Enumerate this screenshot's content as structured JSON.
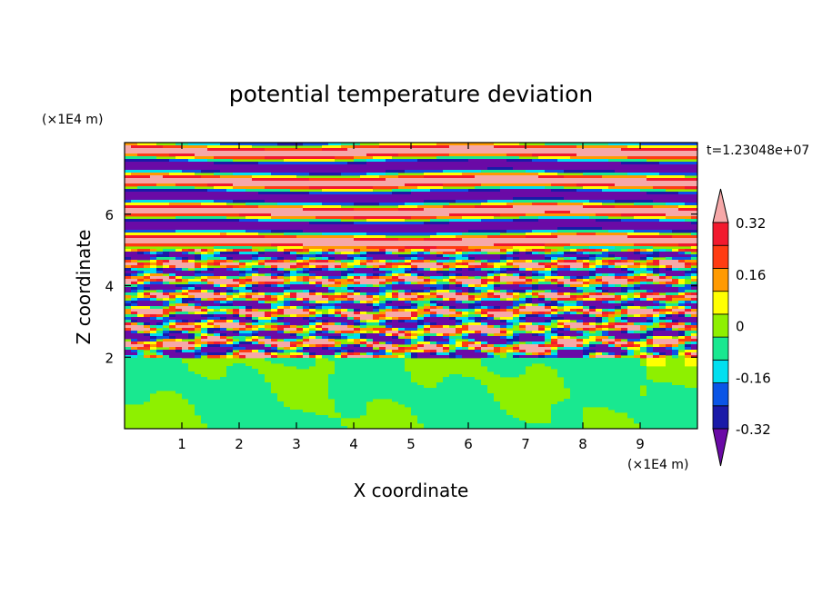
{
  "chart_data": {
    "type": "heatmap",
    "title": "potential temperature deviation",
    "xlabel": "X coordinate",
    "ylabel": "Z coordinate",
    "x_unit": "(×1E4 m)",
    "y_unit": "(×1E4 m)",
    "time_label": "t=1.23048e+07",
    "xlim": [
      0,
      10
    ],
    "ylim": [
      0,
      8
    ],
    "x_ticks": [
      1,
      2,
      3,
      4,
      5,
      6,
      7,
      8,
      9
    ],
    "y_ticks": [
      2,
      4,
      6
    ],
    "colorbar": {
      "levels": [
        -0.4,
        -0.32,
        -0.24,
        -0.16,
        -0.08,
        0,
        0.08,
        0.16,
        0.24,
        0.32,
        0.4
      ],
      "colors": [
        "#6a0aa6",
        "#1a1aa8",
        "#0a55e6",
        "#00dff0",
        "#19e890",
        "#8ef000",
        "#ffff00",
        "#ff9a00",
        "#ff3c12",
        "#f21a2e",
        "#f6a8a8"
      ],
      "tick_labels": [
        "-0.32",
        "-0.16",
        "0",
        "0.16",
        "0.32"
      ],
      "tick_values": [
        -0.32,
        -0.16,
        0,
        0.16,
        0.32
      ]
    }
  }
}
